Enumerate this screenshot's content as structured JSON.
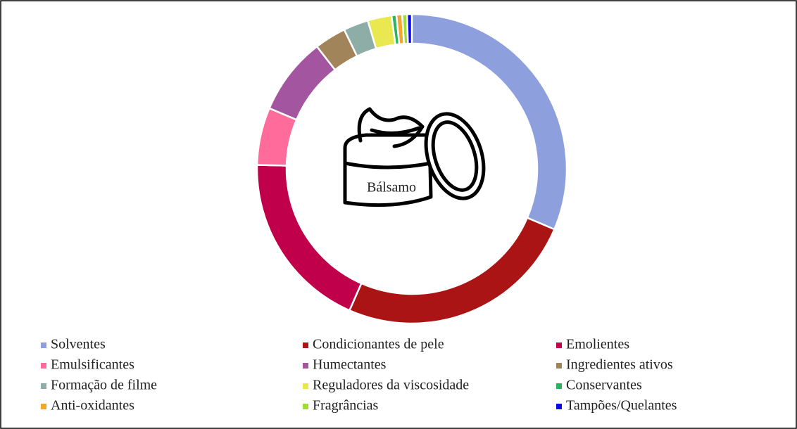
{
  "chart_data": {
    "type": "donut",
    "center_label": "Bálsamo",
    "categories": [
      "Solventes",
      "Condicionantes de pele",
      "Emolientes",
      "Emulsificantes",
      "Humectantes",
      "Ingredientes ativos",
      "Formação de filme",
      "Reguladores da viscosidade",
      "Conservantes",
      "Anti-oxidantes",
      "Fragrâncias",
      "Tampões/Quelantes"
    ],
    "values": [
      31.4,
      25.2,
      18.8,
      6,
      8.1,
      3.3,
      2.6,
      2.5,
      0.5,
      0.6,
      0.5,
      0.5
    ],
    "colors": [
      "#8e9fdd",
      "#ab1414",
      "#c0004a",
      "#ff6b9b",
      "#a3569f",
      "#a2845a",
      "#8fada7",
      "#e9e851",
      "#2bb45c",
      "#f5a52a",
      "#9ade37",
      "#0a0ae0"
    ],
    "legend": "bottom"
  }
}
